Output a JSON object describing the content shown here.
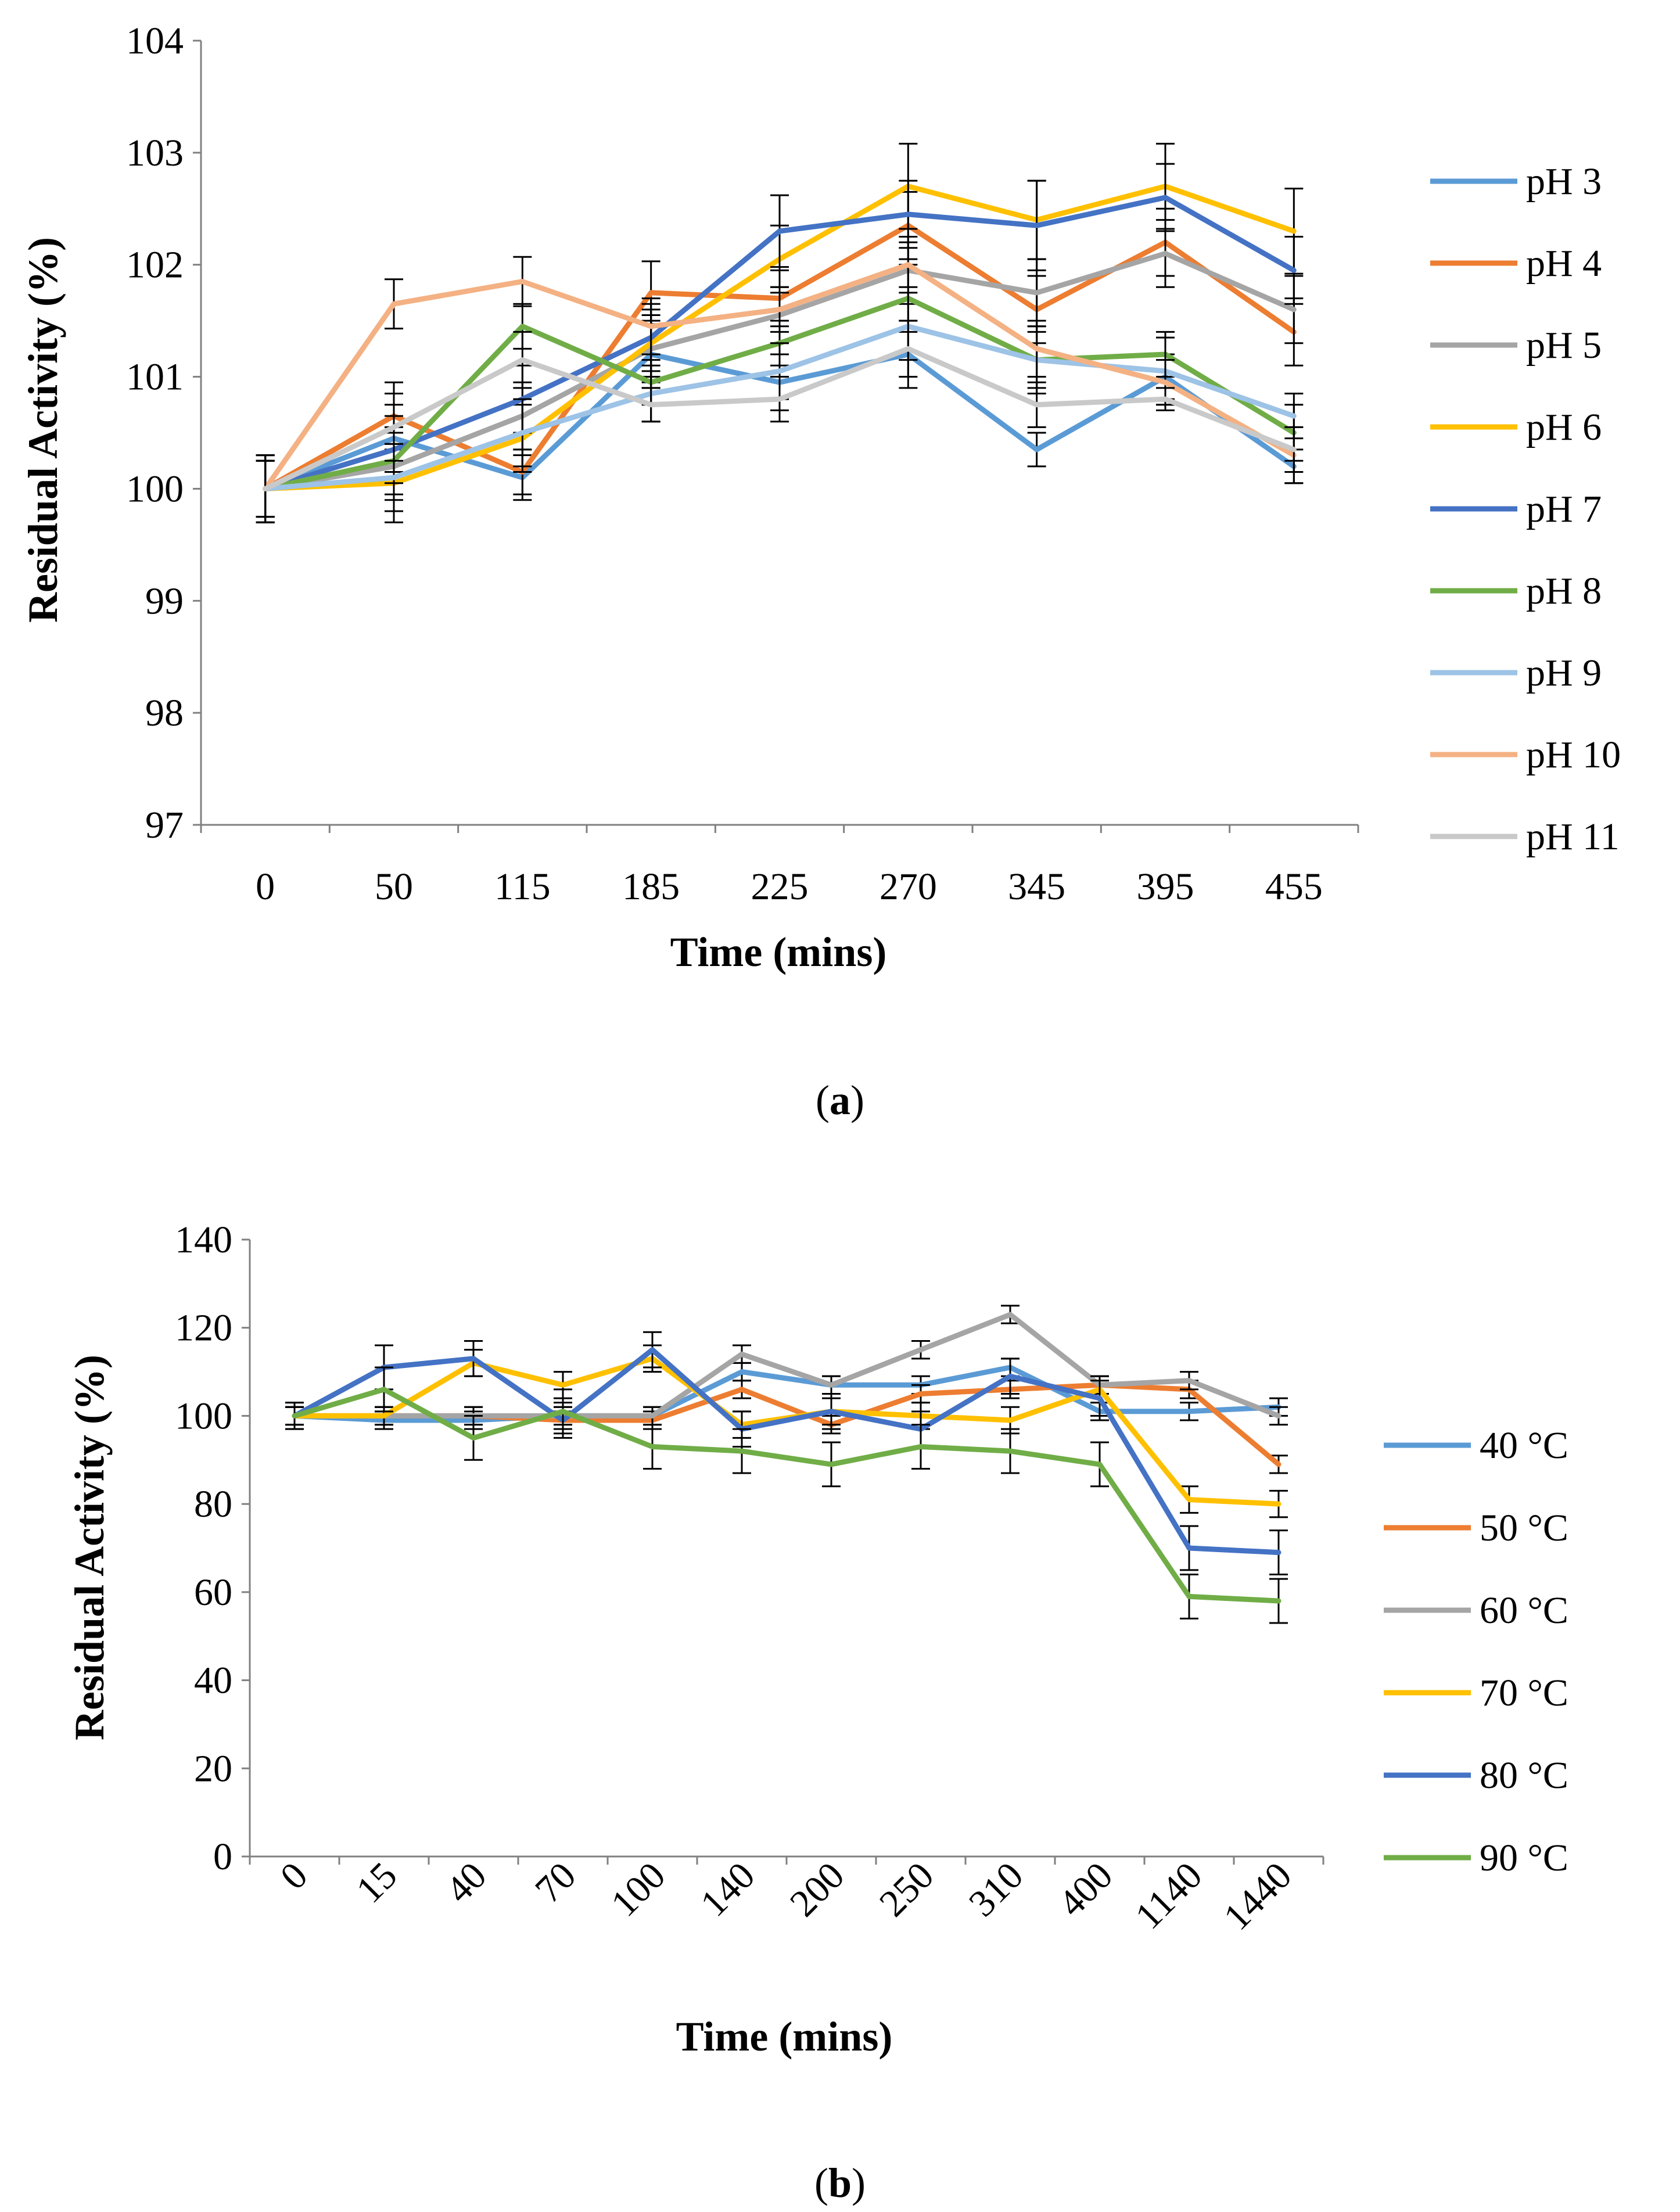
{
  "chart_data": [
    {
      "type": "line",
      "panel_label": "a",
      "xlabel": "Time (mins)",
      "ylabel": "Residual Activity (%)",
      "ylim": [
        97,
        104
      ],
      "yticks": [
        97,
        98,
        99,
        100,
        101,
        102,
        103,
        104
      ],
      "categories": [
        "0",
        "50",
        "115",
        "185",
        "225",
        "270",
        "345",
        "395",
        "455"
      ],
      "legend_position": "right",
      "series": [
        {
          "name": "pH 3",
          "color": "#5B9BD5",
          "values": [
            100,
            100.45,
            100.1,
            101.2,
            100.95,
            101.2,
            100.35,
            101.0,
            100.2
          ],
          "errors": [
            0.3,
            0.3,
            0.2,
            0.3,
            0.25,
            0.3,
            0.15,
            0.2,
            0.15
          ]
        },
        {
          "name": "pH 4",
          "color": "#ED7D31",
          "values": [
            100,
            100.65,
            100.15,
            101.75,
            101.7,
            102.35,
            101.6,
            102.2,
            101.4
          ],
          "errors": [
            0.3,
            0.3,
            0.2,
            0.28,
            0.25,
            0.3,
            0.3,
            0.3,
            0.3
          ]
        },
        {
          "name": "pH 5",
          "color": "#A5A5A5",
          "values": [
            100,
            100.2,
            100.65,
            101.25,
            101.55,
            101.95,
            101.75,
            102.1,
            101.6
          ],
          "errors": [
            0.25,
            0.3,
            0.3,
            0.3,
            0.25,
            0.3,
            0.3,
            0.3,
            0.3
          ]
        },
        {
          "name": "pH 6",
          "color": "#FFC000",
          "values": [
            100,
            100.05,
            100.45,
            101.3,
            102.05,
            102.7,
            102.4,
            102.7,
            102.3
          ],
          "errors": [
            0.25,
            0.35,
            0.3,
            0.3,
            0.3,
            0.38,
            0.35,
            0.38,
            0.38
          ]
        },
        {
          "name": "pH 7",
          "color": "#4472C4",
          "values": [
            100,
            100.35,
            100.8,
            101.35,
            102.3,
            102.45,
            102.35,
            102.6,
            101.95
          ],
          "errors": [
            0.3,
            0.3,
            0.3,
            0.3,
            0.32,
            0.3,
            0.4,
            0.3,
            0.3
          ]
        },
        {
          "name": "pH 8",
          "color": "#70AD47",
          "values": [
            100,
            100.25,
            101.45,
            100.95,
            101.3,
            101.7,
            101.15,
            101.2,
            100.5
          ],
          "errors": [
            0.25,
            0.3,
            0.2,
            0.2,
            0.2,
            0.3,
            0.25,
            0.2,
            0.25
          ]
        },
        {
          "name": "pH 9",
          "color": "#9DC3E6",
          "values": [
            100,
            100.1,
            100.5,
            100.85,
            101.05,
            101.45,
            101.15,
            101.05,
            100.65
          ],
          "errors": [
            0.25,
            0.3,
            0.3,
            0.25,
            0.25,
            0.3,
            0.3,
            0.3,
            0.2
          ]
        },
        {
          "name": "pH 10",
          "color": "#F4B183",
          "values": [
            100,
            101.65,
            101.85,
            101.45,
            101.6,
            102.0,
            101.25,
            100.95,
            100.3
          ],
          "errors": [
            0.3,
            0.22,
            0.22,
            0.25,
            0.2,
            0.2,
            0.25,
            0.2,
            0.25
          ]
        },
        {
          "name": "pH 11",
          "color": "#C9C9C9",
          "values": [
            100,
            100.55,
            101.15,
            100.75,
            100.8,
            101.25,
            100.75,
            100.8,
            100.35
          ],
          "errors": [
            0.25,
            0.3,
            0.25,
            0.15,
            0.2,
            0.25,
            0.2,
            0.1,
            0.2
          ]
        }
      ]
    },
    {
      "type": "line",
      "panel_label": "b",
      "xlabel": "Time (mins)",
      "ylabel": "Residual Activity (%)",
      "ylim": [
        0,
        140
      ],
      "yticks": [
        0,
        20,
        40,
        60,
        80,
        100,
        120,
        140
      ],
      "categories": [
        "0",
        "15",
        "40",
        "70",
        "100",
        "140",
        "200",
        "250",
        "310",
        "400",
        "1140",
        "1440"
      ],
      "legend_position": "right",
      "series": [
        {
          "name": "40 °C",
          "color": "#5B9BD5",
          "values": [
            100,
            99,
            99,
            100,
            100,
            110,
            107,
            107,
            111,
            101,
            101,
            102
          ],
          "errors": [
            2,
            2,
            2,
            2,
            2,
            2,
            2,
            2,
            2,
            2,
            2,
            2
          ]
        },
        {
          "name": "50 °C",
          "color": "#ED7D31",
          "values": [
            100,
            100,
            100,
            99,
            99,
            106,
            98,
            105,
            106,
            107,
            106,
            89
          ],
          "errors": [
            2,
            2,
            2,
            2,
            2,
            2,
            2,
            2,
            2,
            2,
            2,
            2
          ]
        },
        {
          "name": "60 °C",
          "color": "#A5A5A5",
          "values": [
            100,
            100,
            100,
            100,
            100,
            114,
            107,
            115,
            123,
            107,
            108,
            100
          ],
          "errors": [
            2,
            2,
            2,
            2,
            2,
            2,
            2,
            2,
            2,
            2,
            2,
            2
          ]
        },
        {
          "name": "70 °C",
          "color": "#FFC000",
          "values": [
            100,
            100,
            112,
            107,
            113,
            98,
            101,
            100,
            99,
            106,
            81,
            80
          ],
          "errors": [
            2,
            2,
            3,
            3,
            3,
            3,
            3,
            3,
            3,
            3,
            3,
            3
          ]
        },
        {
          "name": "80 °C",
          "color": "#4472C4",
          "values": [
            100,
            111,
            113,
            99,
            115,
            97,
            101,
            97,
            109,
            104,
            70,
            69
          ],
          "errors": [
            3,
            5,
            4,
            4,
            4,
            4,
            4,
            4,
            4,
            4,
            5,
            5
          ]
        },
        {
          "name": "90 °C",
          "color": "#70AD47",
          "values": [
            100,
            106,
            95,
            101,
            93,
            92,
            89,
            93,
            92,
            89,
            59,
            58
          ],
          "errors": [
            3,
            5,
            5,
            5,
            5,
            5,
            5,
            5,
            5,
            5,
            5,
            5
          ]
        }
      ]
    }
  ]
}
